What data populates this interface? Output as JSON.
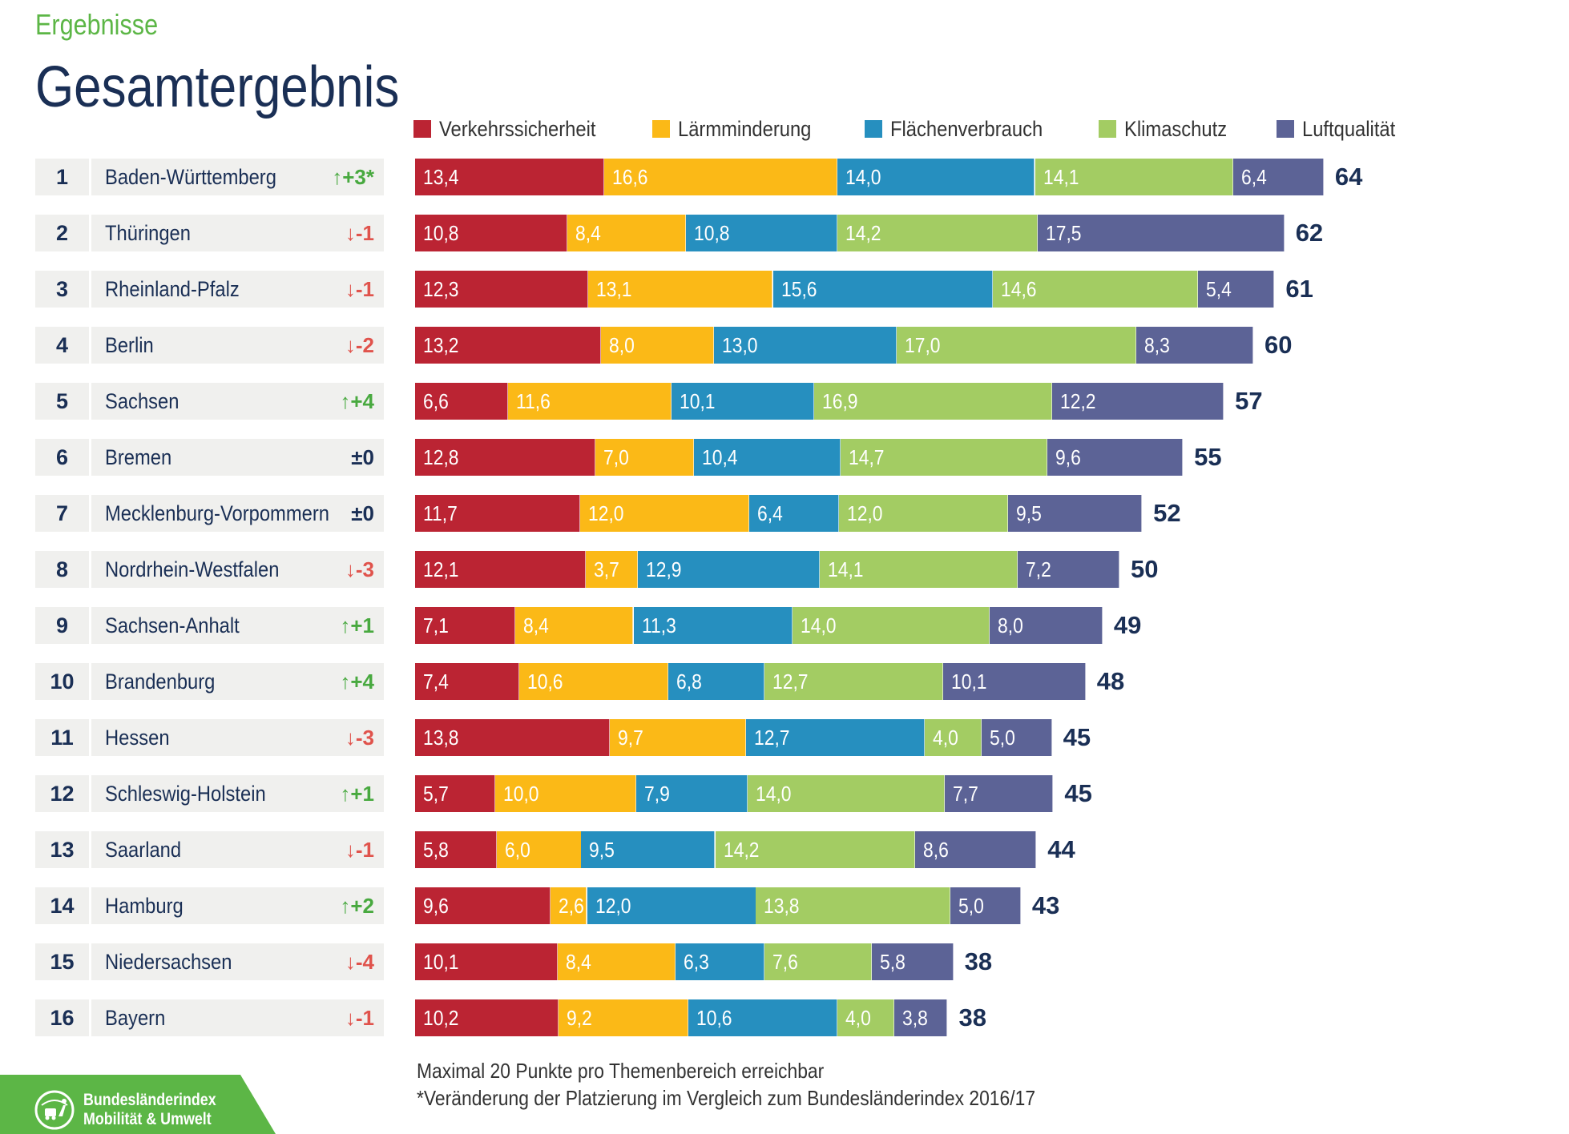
{
  "header": {
    "section": "Ergebnisse",
    "title": "Gesamtergebnis"
  },
  "colors": {
    "verkehrssicherheit": "#bb2433",
    "laermminderung": "#fbb917",
    "flaechenverbrauch": "#268fbf",
    "klimaschutz": "#a3cc63",
    "luftqualitaet": "#5c6396",
    "up": "#48a93f",
    "down": "#e0534c",
    "text_dark": "#1a2f55",
    "brand_green": "#5cb646"
  },
  "chart_data": {
    "type": "bar",
    "orientation": "horizontal",
    "stacked": true,
    "categories": [
      "Baden-Württemberg",
      "Thüringen",
      "Rheinland-Pfalz",
      "Berlin",
      "Sachsen",
      "Bremen",
      "Mecklenburg-Vorpommern",
      "Nordrhein-Westfalen",
      "Sachsen-Anhalt",
      "Brandenburg",
      "Hessen",
      "Schleswig-Holstein",
      "Saarland",
      "Hamburg",
      "Niedersachsen",
      "Bayern"
    ],
    "ranks": [
      "1",
      "2",
      "3",
      "4",
      "5",
      "6",
      "7",
      "8",
      "9",
      "10",
      "11",
      "12",
      "13",
      "14",
      "15",
      "16"
    ],
    "changes": [
      "↑+3*",
      "↓-1",
      "↓-1",
      "↓-2",
      "↑+4",
      "±0",
      "±0",
      "↓-3",
      "↑+1",
      "↑+4",
      "↓-3",
      "↑+1",
      "↓-1",
      "↑+2",
      "↓-4",
      "↓-1"
    ],
    "series": [
      {
        "name": "Verkehrssicherheit",
        "color": "#bb2433",
        "values": [
          13.4,
          10.8,
          12.3,
          13.2,
          6.6,
          12.8,
          11.7,
          12.1,
          7.1,
          7.4,
          13.8,
          5.7,
          5.8,
          9.6,
          10.1,
          10.2
        ],
        "labels": [
          "13,4",
          "10,8",
          "12,3",
          "13,2",
          "6,6",
          "12,8",
          "11,7",
          "12,1",
          "7,1",
          "7,4",
          "13,8",
          "5,7",
          "5,8",
          "9,6",
          "10,1",
          "10,2"
        ]
      },
      {
        "name": "Lärmminderung",
        "color": "#fbb917",
        "values": [
          16.6,
          8.4,
          13.1,
          8.0,
          11.6,
          7.0,
          12.0,
          3.7,
          8.4,
          10.6,
          9.7,
          10.0,
          6.0,
          2.6,
          8.4,
          9.2
        ],
        "labels": [
          "16,6",
          "8,4",
          "13,1",
          "8,0",
          "11,6",
          "7,0",
          "12,0",
          "3,7",
          "8,4",
          "10,6",
          "9,7",
          "10,0",
          "6,0",
          "2,6",
          "8,4",
          "9,2"
        ]
      },
      {
        "name": "Flächenverbrauch",
        "color": "#268fbf",
        "values": [
          14.0,
          10.8,
          15.6,
          13.0,
          10.1,
          10.4,
          6.4,
          12.9,
          11.3,
          6.8,
          12.7,
          7.9,
          9.5,
          12.0,
          6.3,
          10.6
        ],
        "labels": [
          "14,0",
          "10,8",
          "15,6",
          "13,0",
          "10,1",
          "10,4",
          "6,4",
          "12,9",
          "11,3",
          "6,8",
          "12,7",
          "7,9",
          "9,5",
          "12,0",
          "6,3",
          "10,6"
        ]
      },
      {
        "name": "Klimaschutz",
        "color": "#a3cc63",
        "values": [
          14.1,
          14.2,
          14.6,
          17.0,
          16.9,
          14.7,
          12.0,
          14.1,
          14.0,
          12.7,
          4.0,
          14.0,
          14.2,
          13.8,
          7.6,
          4.0
        ],
        "labels": [
          "14,1",
          "14,2",
          "14,6",
          "17,0",
          "16,9",
          "14,7",
          "12,0",
          "14,1",
          "14,0",
          "12,7",
          "4,0",
          "14,0",
          "14,2",
          "13,8",
          "7,6",
          "4,0"
        ]
      },
      {
        "name": "Luftqualität",
        "color": "#5c6396",
        "values": [
          6.4,
          17.5,
          5.4,
          8.3,
          12.2,
          9.6,
          9.5,
          7.2,
          8.0,
          10.1,
          5.0,
          7.7,
          8.6,
          5.0,
          5.8,
          3.8
        ],
        "labels": [
          "6,4",
          "17,5",
          "5,4",
          "8,3",
          "12,2",
          "9,6",
          "9,5",
          "7,2",
          "8,0",
          "10,1",
          "5,0",
          "7,7",
          "8,6",
          "5,0",
          "5,8",
          "3,8"
        ]
      }
    ],
    "totals": [
      64,
      62,
      61,
      60,
      57,
      55,
      52,
      50,
      49,
      48,
      45,
      45,
      44,
      43,
      38,
      38
    ],
    "xlim": [
      0,
      100
    ],
    "legend_position": "top",
    "grid": false
  },
  "footnotes": {
    "line1": "Maximal 20 Punkte pro Themenbereich erreichbar",
    "line2": "*Veränderung der Platzierung im Vergleich zum Bundesländerindex 2016/17"
  },
  "logo": {
    "line1": "Bundesländerindex",
    "line2": "Mobilität & Umwelt",
    "icon": "globe-transport-icon"
  }
}
